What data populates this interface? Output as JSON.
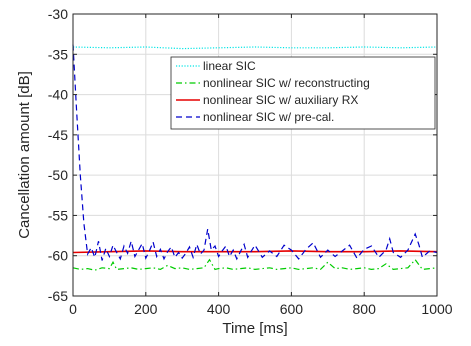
{
  "chart_data": {
    "type": "line",
    "xlabel": "Time [ms]",
    "ylabel": "Cancellation amount [dB]",
    "xlim": [
      0,
      1000
    ],
    "ylim": [
      -65,
      -30
    ],
    "xticks": [
      0,
      200,
      400,
      600,
      800,
      1000
    ],
    "yticks": [
      -65,
      -60,
      -55,
      -50,
      -45,
      -40,
      -35,
      -30
    ],
    "grid": true,
    "legend": "upper-right",
    "series": [
      {
        "name": "linear SIC",
        "color": "#00e5e5",
        "dash": "dotted",
        "x": [
          0,
          100,
          200,
          300,
          400,
          500,
          600,
          700,
          800,
          900,
          1000
        ],
        "y": [
          -34.1,
          -34.2,
          -34.1,
          -34.3,
          -34.2,
          -34.1,
          -34.2,
          -34.2,
          -34.1,
          -34.2,
          -34.1
        ]
      },
      {
        "name": "nonlinear SIC w/ reconstructing",
        "color": "#00cc00",
        "dash": "dashdot",
        "x": [
          0,
          20,
          40,
          60,
          80,
          100,
          110,
          120,
          140,
          160,
          180,
          200,
          220,
          240,
          260,
          280,
          300,
          320,
          340,
          360,
          375,
          390,
          400,
          420,
          440,
          460,
          480,
          500,
          520,
          540,
          560,
          580,
          600,
          620,
          640,
          660,
          680,
          700,
          720,
          740,
          760,
          780,
          800,
          820,
          840,
          860,
          880,
          900,
          920,
          940,
          960,
          980,
          1000
        ],
        "y": [
          -61.5,
          -61.7,
          -61.6,
          -61.8,
          -61.5,
          -61.6,
          -60.8,
          -61.7,
          -61.6,
          -61.5,
          -61.7,
          -61.6,
          -61.5,
          -61.7,
          -61.2,
          -61.6,
          -61.5,
          -61.7,
          -61.6,
          -61.5,
          -60.5,
          -61.7,
          -61.6,
          -61.5,
          -61.7,
          -61.6,
          -61.5,
          -61.7,
          -61.6,
          -61.5,
          -61.7,
          -61.6,
          -61.5,
          -61.7,
          -61.6,
          -61.5,
          -61.7,
          -60.8,
          -61.6,
          -61.5,
          -61.7,
          -61.6,
          -61.5,
          -61.7,
          -61.6,
          -61.0,
          -61.7,
          -61.6,
          -61.5,
          -60.5,
          -61.7,
          -61.6,
          -61.5
        ]
      },
      {
        "name": "nonlinear SIC w/ auxiliary RX",
        "color": "#e60000",
        "dash": "solid",
        "x": [
          0,
          100,
          200,
          300,
          400,
          500,
          600,
          700,
          800,
          900,
          1000
        ],
        "y": [
          -59.6,
          -59.5,
          -59.4,
          -59.5,
          -59.5,
          -59.5,
          -59.4,
          -59.5,
          -59.5,
          -59.4,
          -59.5
        ]
      },
      {
        "name": "nonlinear SIC w/ pre-cal.",
        "color": "#0000cc",
        "dash": "dashed",
        "x": [
          0,
          10,
          20,
          30,
          40,
          50,
          60,
          70,
          80,
          90,
          100,
          110,
          120,
          130,
          140,
          150,
          160,
          170,
          180,
          190,
          200,
          210,
          220,
          230,
          240,
          250,
          260,
          270,
          280,
          290,
          300,
          310,
          320,
          330,
          340,
          350,
          360,
          370,
          380,
          390,
          400,
          410,
          420,
          430,
          440,
          450,
          460,
          470,
          480,
          490,
          500,
          520,
          540,
          560,
          580,
          600,
          620,
          640,
          660,
          680,
          700,
          720,
          740,
          760,
          780,
          800,
          820,
          840,
          860,
          870,
          880,
          900,
          920,
          940,
          950,
          960,
          980,
          1000
        ],
        "y": [
          -33.8,
          -42,
          -50,
          -56,
          -59.8,
          -59,
          -60.2,
          -58.2,
          -60.6,
          -59.1,
          -60.1,
          -58.7,
          -59.6,
          -60.4,
          -58.8,
          -59.7,
          -58.2,
          -60.1,
          -59.3,
          -58.5,
          -60.3,
          -59.4,
          -58.3,
          -60.1,
          -59.2,
          -60.4,
          -59.5,
          -58.9,
          -60.2,
          -59.6,
          -60.3,
          -59.7,
          -58.9,
          -60.2,
          -58.6,
          -59.8,
          -59.3,
          -56.7,
          -59.3,
          -58.8,
          -60.1,
          -59.4,
          -58.8,
          -60.1,
          -59.3,
          -60.4,
          -59.5,
          -58.6,
          -60.2,
          -59.4,
          -58.7,
          -60.2,
          -59.4,
          -60.1,
          -58.7,
          -59.3,
          -60.4,
          -59.2,
          -58.4,
          -60.2,
          -59.3,
          -60.1,
          -59.4,
          -58.7,
          -60.3,
          -59.2,
          -58.8,
          -60.2,
          -59.3,
          -57.9,
          -59.6,
          -60.2,
          -59.3,
          -57.3,
          -58.6,
          -60.2,
          -59.4,
          -59.6
        ]
      }
    ]
  }
}
